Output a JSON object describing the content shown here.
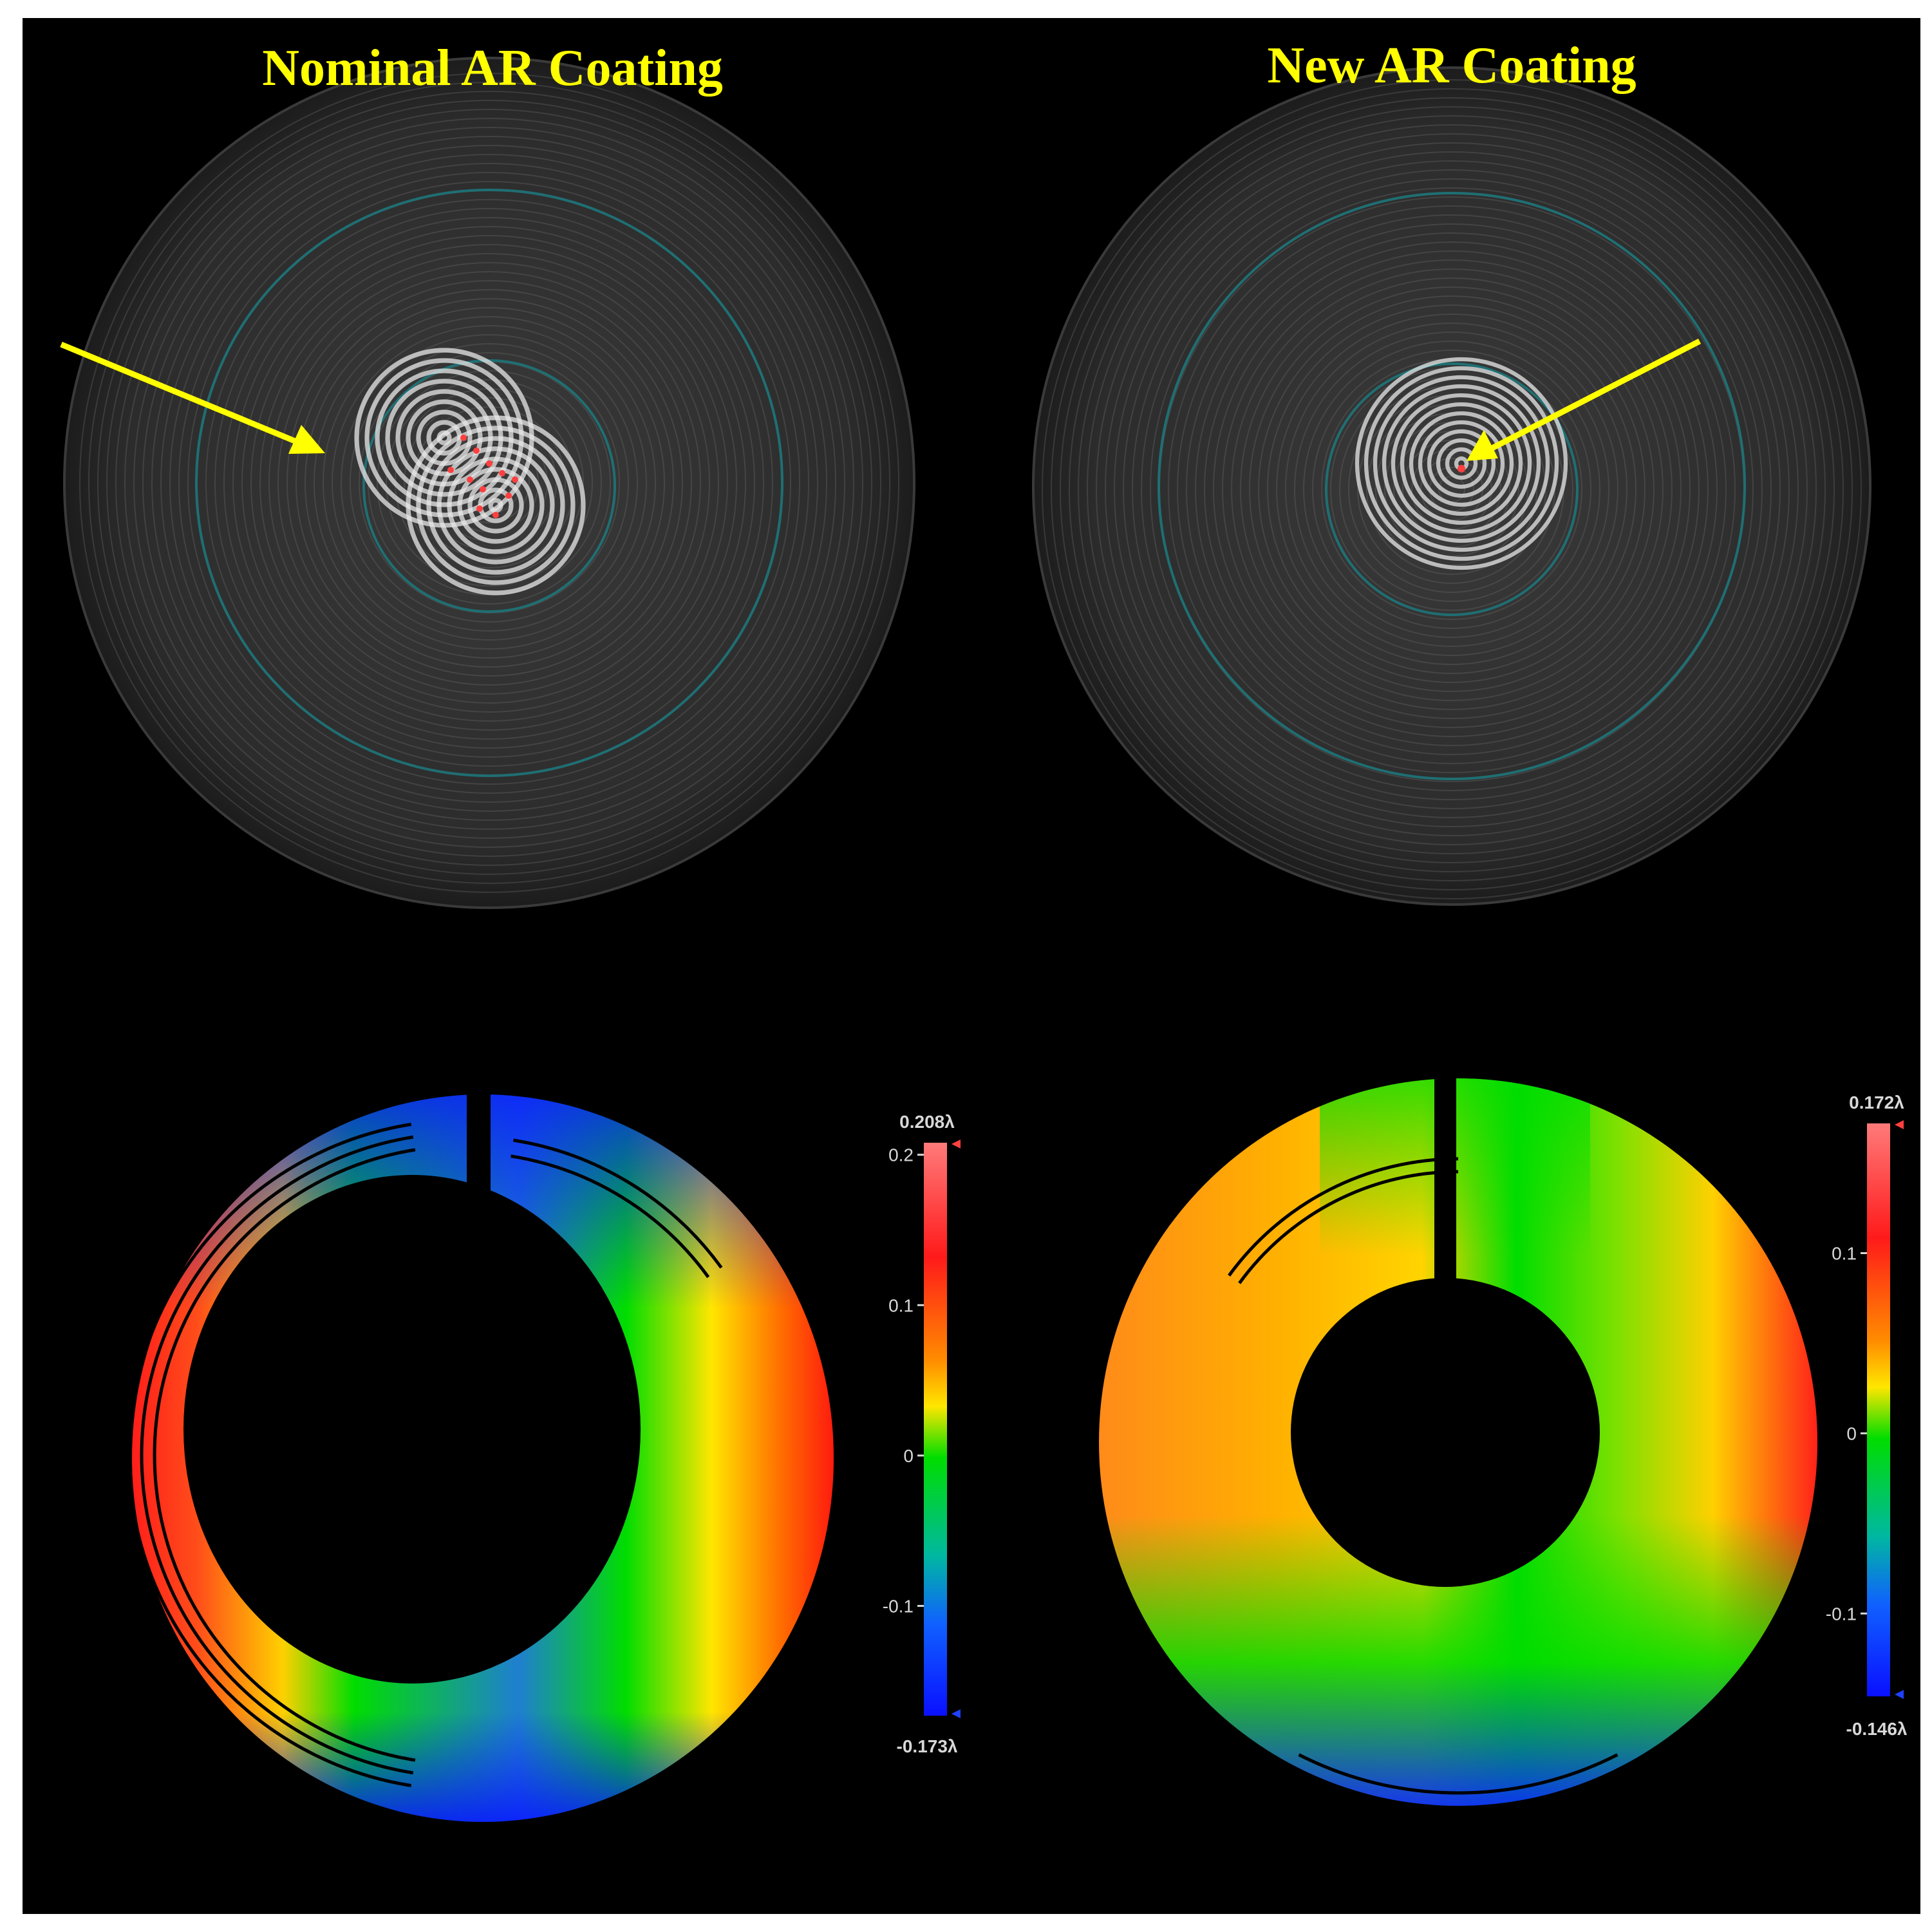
{
  "panels": [
    {
      "id": "nominal",
      "title": "Nominal AR Coating",
      "colorbar": {
        "max_label": "0.208λ",
        "min_label": "-0.173λ",
        "ticks": [
          {
            "label": "0.2",
            "value": 0.2
          },
          {
            "label": "0.1",
            "value": 0.1
          },
          {
            "label": "0",
            "value": 0
          },
          {
            "label": "-0.1",
            "value": -0.1
          }
        ],
        "vmin": -0.173,
        "vmax": 0.208
      }
    },
    {
      "id": "new",
      "title": "New AR Coating",
      "colorbar": {
        "max_label": "0.172λ",
        "min_label": "-0.146λ",
        "ticks": [
          {
            "label": "0.1",
            "value": 0.1
          },
          {
            "label": "0",
            "value": 0
          },
          {
            "label": "-0.1",
            "value": -0.1
          }
        ],
        "vmin": -0.146,
        "vmax": 0.172
      }
    }
  ],
  "colors": {
    "background": "#000000",
    "frame": "#ffffff",
    "title": "#ffff00",
    "arrow": "#ffff00",
    "guide_circle": "#1f6f73",
    "fringe_disk": "#2a2a2a",
    "axis_text": "#d8d8d8",
    "map_red": "#ff1a1a",
    "map_orange": "#ff8c00",
    "map_yellow": "#ffe600",
    "map_green": "#00dd00",
    "map_blue": "#0a1aff"
  }
}
